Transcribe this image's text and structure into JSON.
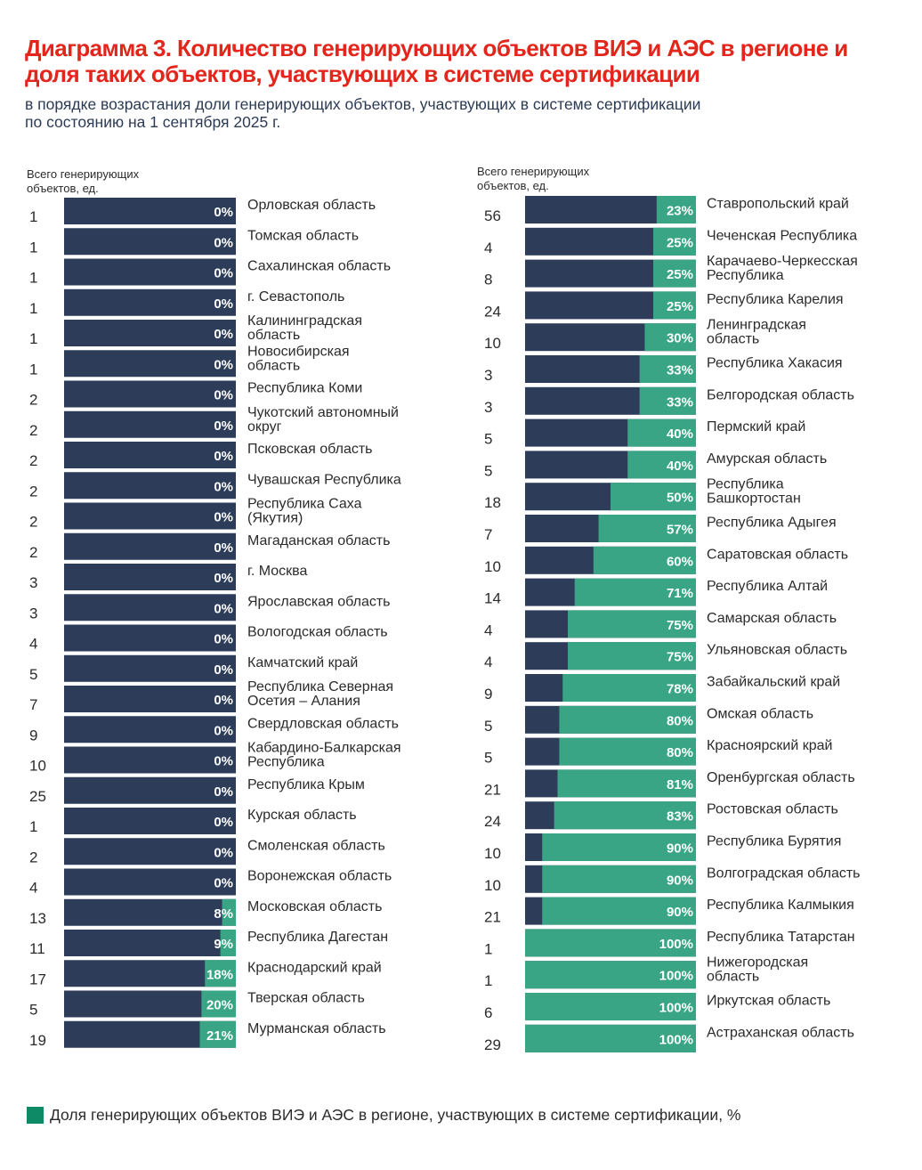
{
  "title": "Диаграмма 3. Количество генерирующих объектов ВИЭ и АЭС в регионе и доля таких объектов, участвующих в системе сертификации",
  "subtitle_line1": "в порядке возрастания доли генерирующих объектов, участвующих в системе сертификации",
  "subtitle_line2": "по состоянию на 1 сентября 2025 г.",
  "count_header_line1": "Всего генерирующих",
  "count_header_line2": "объектов, ед.",
  "legend_label": "Доля генерирующих объектов ВИЭ и АЭС в регионе, участвующих в системе сертификации, %",
  "colors": {
    "bar_dark": "#2d3d59",
    "bar_green": "#3aa585",
    "legend_green": "#0f8a66",
    "title_red": "#e2261c"
  },
  "chart_data": [
    {
      "type": "bar",
      "orientation": "horizontal",
      "stacked": true,
      "xlim": [
        0,
        100
      ],
      "categories": [
        "Орловская область",
        "Томская область",
        "Сахалинская область",
        "г. Севастополь",
        "Калининградская область",
        "Новосибирская область",
        "Республика Коми",
        "Чукотский автономный округ",
        "Псковская область",
        "Чувашская Республика",
        "Республика Саха (Якутия)",
        "Магаданская область",
        "г. Москва",
        "Ярославская область",
        "Вологодская область",
        "Камчатский край",
        "Республика Северная Осетия – Алания",
        "Свердловская область",
        "Кабардино-Балкарская Республика",
        "Республика Крым",
        "Курская область",
        "Смоленская область",
        "Воронежская область",
        "Московская область",
        "Республика Дагестан",
        "Краснодарский край",
        "Тверская область",
        "Мурманская область"
      ],
      "label_lines": [
        [
          "Орловская область"
        ],
        [
          "Томская область"
        ],
        [
          "Сахалинская область"
        ],
        [
          "г. Севастополь"
        ],
        [
          "Калининградская",
          "область"
        ],
        [
          "Новосибирская",
          "область"
        ],
        [
          "Республика Коми"
        ],
        [
          "Чукотский автономный",
          "округ"
        ],
        [
          "Псковская область"
        ],
        [
          "Чувашская Республика"
        ],
        [
          "Республика Саха",
          "(Якутия)"
        ],
        [
          "Магаданская область"
        ],
        [
          "г. Москва"
        ],
        [
          "Ярославская область"
        ],
        [
          "Вологодская область"
        ],
        [
          "Камчатский край"
        ],
        [
          "Республика Северная",
          "Осетия – Алания"
        ],
        [
          "Свердловская область"
        ],
        [
          "Кабардино-Балкарская",
          "Республика"
        ],
        [
          "Республика Крым"
        ],
        [
          "Курская область"
        ],
        [
          "Смоленская область"
        ],
        [
          "Воронежская область"
        ],
        [
          "Московская область"
        ],
        [
          "Республика Дагестан"
        ],
        [
          "Краснодарский край"
        ],
        [
          "Тверская область"
        ],
        [
          "Мурманская область"
        ]
      ],
      "counts": [
        1,
        1,
        1,
        1,
        1,
        1,
        2,
        2,
        2,
        2,
        2,
        2,
        3,
        3,
        4,
        5,
        7,
        9,
        10,
        25,
        1,
        2,
        4,
        13,
        11,
        17,
        5,
        19
      ],
      "series": [
        {
          "name": "Доля генерирующих объектов ВИЭ и АЭС в регионе, участвующих в системе сертификации, %",
          "values": [
            0,
            0,
            0,
            0,
            0,
            0,
            0,
            0,
            0,
            0,
            0,
            0,
            0,
            0,
            0,
            0,
            0,
            0,
            0,
            0,
            0,
            0,
            0,
            8,
            9,
            18,
            20,
            21
          ],
          "labels": [
            "0%",
            "0%",
            "0%",
            "0%",
            "0%",
            "0%",
            "0%",
            "0%",
            "0%",
            "0%",
            "0%",
            "0%",
            "0%",
            "0%",
            "0%",
            "0%",
            "0%",
            "0%",
            "0%",
            "0%",
            "0%",
            "0%",
            "0%",
            "8%",
            "9%",
            "18%",
            "20%",
            "21%"
          ]
        }
      ]
    },
    {
      "type": "bar",
      "orientation": "horizontal",
      "stacked": true,
      "xlim": [
        0,
        100
      ],
      "categories": [
        "Ставропольский край",
        "Чеченская Республика",
        "Карачаево-Черкесская Республика",
        "Республика Карелия",
        "Ленинградская область",
        "Республика Хакасия",
        "Белгородская область",
        "Пермский край",
        "Амурская область",
        "Республика Башкортостан",
        "Республика Адыгея",
        "Саратовская область",
        "Республика Алтай",
        "Самарская область",
        "Ульяновская область",
        "Забайкальский край",
        "Омская область",
        "Красноярский край",
        "Оренбургская область",
        "Ростовская область",
        "Республика Бурятия",
        "Волгоградская область",
        "Республика Калмыкия",
        "Республика Татарстан",
        "Нижегородская область",
        "Иркутская область",
        "Астраханская область"
      ],
      "label_lines": [
        [
          "Ставропольский край"
        ],
        [
          "Чеченская Республика"
        ],
        [
          "Карачаево-Черкесская",
          "Республика"
        ],
        [
          "Республика Карелия"
        ],
        [
          "Ленинградская",
          "область"
        ],
        [
          "Республика Хакасия"
        ],
        [
          "Белгородская область"
        ],
        [
          "Пермский край"
        ],
        [
          "Амурская область"
        ],
        [
          "Республика",
          "Башкортостан"
        ],
        [
          "Республика Адыгея"
        ],
        [
          "Саратовская область"
        ],
        [
          "Республика Алтай"
        ],
        [
          "Самарская область"
        ],
        [
          "Ульяновская область"
        ],
        [
          "Забайкальский край"
        ],
        [
          "Омская область"
        ],
        [
          "Красноярский край"
        ],
        [
          "Оренбургская область"
        ],
        [
          "Ростовская область"
        ],
        [
          "Республика Бурятия"
        ],
        [
          "Волгоградская область"
        ],
        [
          "Республика Калмыкия"
        ],
        [
          "Республика Татарстан"
        ],
        [
          "Нижегородская",
          "область"
        ],
        [
          "Иркутская область"
        ],
        [
          "Астраханская область"
        ]
      ],
      "counts": [
        56,
        4,
        8,
        24,
        10,
        3,
        3,
        5,
        5,
        18,
        7,
        10,
        14,
        4,
        4,
        9,
        5,
        5,
        21,
        24,
        10,
        10,
        21,
        1,
        1,
        6,
        29
      ],
      "series": [
        {
          "name": "Доля генерирующих объектов ВИЭ и АЭС в регионе, участвующих в системе сертификации, %",
          "values": [
            23,
            25,
            25,
            25,
            30,
            33,
            33,
            40,
            40,
            50,
            57,
            60,
            71,
            75,
            75,
            78,
            80,
            80,
            81,
            83,
            90,
            90,
            90,
            100,
            100,
            100,
            100
          ],
          "labels": [
            "23%",
            "25%",
            "25%",
            "25%",
            "30%",
            "33%",
            "33%",
            "40%",
            "40%",
            "50%",
            "57%",
            "60%",
            "71%",
            "75%",
            "75%",
            "78%",
            "80%",
            "80%",
            "81%",
            "83%",
            "90%",
            "90%",
            "90%",
            "100%",
            "100%",
            "100%",
            "100%"
          ]
        }
      ]
    }
  ]
}
